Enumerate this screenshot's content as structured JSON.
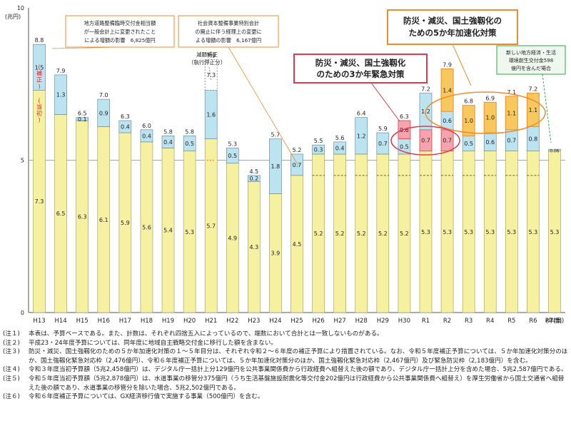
{
  "chart_data": {
    "type": "bar",
    "y_unit": "(兆円)",
    "ylim": [
      0,
      10
    ],
    "y_ticks": [
      "0",
      "5",
      "10"
    ],
    "x_unit": "(年度)",
    "categories": [
      "H13",
      "H14",
      "H15",
      "H16",
      "H17",
      "H18",
      "H19",
      "H20",
      "H21",
      "H22",
      "H23",
      "H24",
      "H25",
      "H26",
      "H27",
      "H28",
      "H29",
      "H30",
      "R1",
      "R2",
      "R3",
      "R4",
      "R5",
      "R6",
      "R7(案)"
    ],
    "series": [
      {
        "name": "当初",
        "values": [
          7.3,
          6.5,
          6.3,
          6.1,
          5.9,
          5.6,
          5.4,
          5.3,
          5.7,
          4.9,
          4.3,
          3.9,
          4.5,
          5.2,
          5.2,
          5.2,
          5.2,
          5.2,
          5.3,
          5.3,
          5.3,
          5.3,
          5.3,
          5.3,
          5.3
        ]
      },
      {
        "name": "補正",
        "values": [
          1.5,
          1.3,
          0.1,
          0.9,
          0.4,
          0.4,
          0.4,
          0.5,
          1.6,
          0.5,
          0.2,
          1.8,
          0.7,
          0.3,
          0.4,
          1.2,
          0.7,
          0.5,
          1.2,
          0.6,
          0.5,
          0.6,
          0.7,
          0.8,
          0.06
        ]
      },
      {
        "name": "防災・減災、国土強靱化のための3か年緊急対策",
        "values": [
          0,
          0,
          0,
          0,
          0,
          0,
          0,
          0,
          0,
          0,
          0,
          0,
          0,
          0,
          0,
          0,
          0,
          0.6,
          0.7,
          0.7,
          0,
          0,
          0,
          0,
          0
        ]
      },
      {
        "name": "防災・減災、国土強靱化のための5か年加速化対策",
        "values": [
          0,
          0,
          0,
          0,
          0,
          0,
          0,
          0,
          0,
          0,
          0,
          0,
          0,
          0,
          0,
          0,
          0,
          0,
          0,
          1.4,
          1.0,
          1.0,
          1.1,
          1.1,
          0
        ]
      }
    ],
    "extra_segment": {
      "category": "H21",
      "value": 7.3,
      "label": "減額補正\n（執行停止分）"
    },
    "totals": [
      "8.8",
      "7.9",
      "6.5",
      "7.0",
      "6.3",
      "6.0",
      "5.8",
      "5.8",
      "7.9",
      "5.3",
      "4.5",
      "5.7",
      "5.2",
      "5.5",
      "5.6",
      "6.4",
      "5.9",
      "6.3",
      "7.2",
      "7.9",
      "6.8",
      "6.9",
      "7.1",
      "7.2",
      ""
    ],
    "legend_label_hosei": "（補正）",
    "legend_label_toshо": "（当初）",
    "annotations": [
      "地方道路整備臨時交付金相当額\nが一般会計上に変更されたこと\nによる増額の影響　6,825億円",
      "社会資本整備事業特別会計\nの廃止に伴う経理上の変更に\nよる増額の影響　6,167億円",
      "防災・減災、国土強靱化の\nための5か年加速化対策",
      "防災・減災、国土強靱化\nのための3か年緊急対策",
      "新しい地方経済・生活\n環境創生交付金598\n億円を含んだ場合"
    ]
  },
  "colors": {
    "tosho": "#F6F1A0",
    "hosei": "#BCE3F0",
    "kinkyu": "#F5A4AD",
    "kasokuka": "#F7C85E",
    "orange": "#F08C2E",
    "red": "#E03A4C",
    "green": "#2EA84A",
    "text_red": "#E0202A"
  },
  "notes": [
    {
      "tag": "(注１)",
      "text": "本表は、予算ベースである。また、計数は、それぞれ四捨五入によっているので、端数において合計とは一致しないものがある。"
    },
    {
      "tag": "(注２)",
      "text": "平成23・24年度予算については、同年度に地域自主戦略交付金に移行した額を含まない。"
    },
    {
      "tag": "(注３)",
      "text": "防災・減災、国土強靱化のための５か年加速化対策の１～５年目分は、それぞれ令和２～６年度の補正予算により措置されている。なお、令和５年度補正予算については、５か年加速化対策分のほか、国土強靱化緊急対応枠（2,476億円）、令和６年度補正予算については、５か年加速化対策分のほか、国土強靱化緊急対応枠（2,467億円）及び緊急防災枠（2,183億円）を含む。"
    },
    {
      "tag": "(注４)",
      "text": "令和３年度当初予算額（5兆2,458億円）は、デジタル庁一括計上分129億円を公共事業関係費から行政経費へ組替えた後の額であり、デジタル庁一括計上分を含めた場合、5兆2,587億円である。"
    },
    {
      "tag": "(注５)",
      "text": "令和５年度当初予算額（5兆2,878億円）は、水道事業の移管分375億円（うち生活基盤施設耐震化等交付金202億円は行政経費から公共事業関係費へ組替え）を厚生労働省から国土交通省へ組替えた後の額であり、水道事業の移管分を除いた場合、5兆2,502億円である。"
    },
    {
      "tag": "(注６)",
      "text": "令和６年度補正予算については、GX経済移行債で実施する事業（500億円）を含む。"
    }
  ]
}
